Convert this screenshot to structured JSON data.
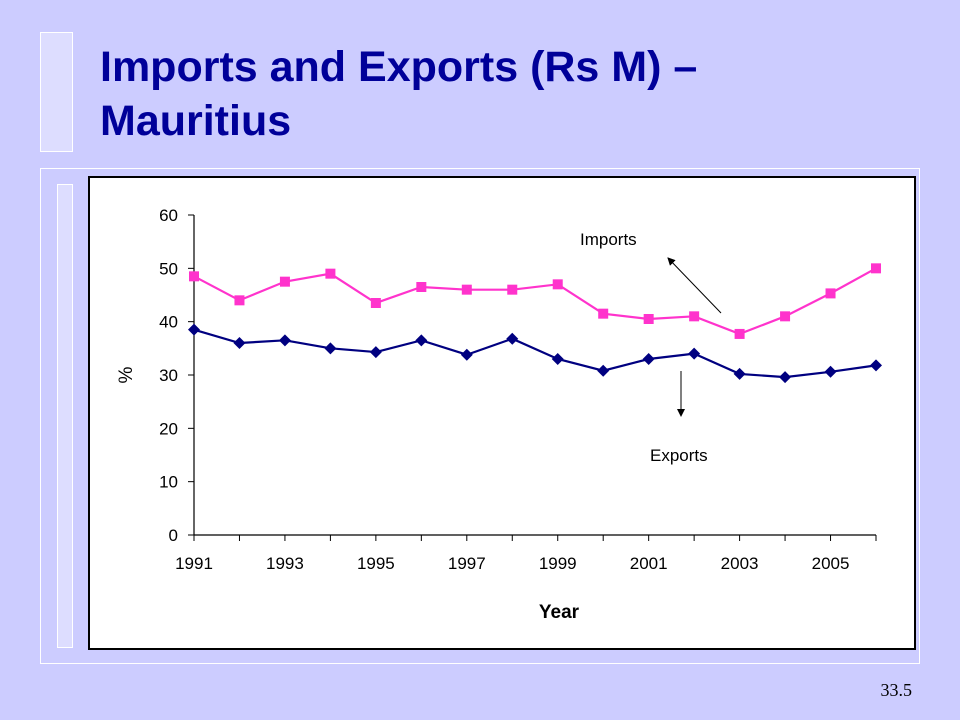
{
  "slide": {
    "title": "Imports and Exports (Rs M) – Mauritius",
    "page_number": "33.5"
  },
  "chart_data": {
    "type": "line",
    "title": "",
    "xlabel": "Year",
    "ylabel": "%",
    "x": [
      1991,
      1992,
      1993,
      1994,
      1995,
      1996,
      1997,
      1998,
      1999,
      2000,
      2001,
      2002,
      2003,
      2004,
      2005,
      2006
    ],
    "x_ticks": [
      "1991",
      "1993",
      "1995",
      "1997",
      "1999",
      "2001",
      "2003",
      "2005"
    ],
    "y_ticks": [
      "0",
      "10",
      "20",
      "30",
      "40",
      "50",
      "60"
    ],
    "ylim": [
      0,
      60
    ],
    "xlim": [
      1991,
      2006
    ],
    "grid": false,
    "series": [
      {
        "name": "Imports",
        "color": "#ff33cc",
        "marker": "square",
        "values": [
          48.5,
          44,
          47.5,
          49,
          43.5,
          46.5,
          46,
          46,
          47,
          41.5,
          40.5,
          41,
          37.7,
          41,
          45.3,
          50
        ]
      },
      {
        "name": "Exports",
        "color": "#000080",
        "marker": "diamond",
        "values": [
          38.5,
          36,
          36.5,
          35,
          34.3,
          36.5,
          33.8,
          36.8,
          33,
          30.8,
          33,
          34,
          30.2,
          29.6,
          30.6,
          31.8
        ]
      }
    ],
    "annotations": [
      {
        "text": "Imports",
        "target_series": "Imports"
      },
      {
        "text": "Exports",
        "target_series": "Exports"
      }
    ]
  }
}
